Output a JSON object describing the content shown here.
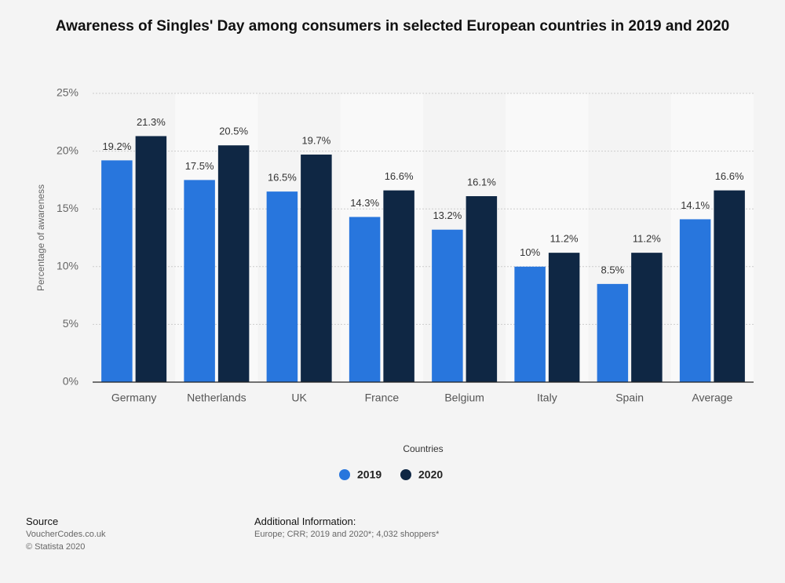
{
  "chart_data": {
    "type": "bar",
    "title": "Awareness of Singles' Day among consumers in selected European countries in 2019 and 2020",
    "x_label": "Countries",
    "y_label": "Percentage of awareness",
    "categories": [
      "Germany",
      "Netherlands",
      "UK",
      "France",
      "Belgium",
      "Italy",
      "Spain",
      "Average"
    ],
    "series": [
      {
        "name": "2019",
        "color": "#2876dd",
        "values": [
          19.2,
          17.5,
          16.5,
          14.3,
          13.2,
          10,
          8.5,
          14.1
        ],
        "value_labels": [
          "19.2%",
          "17.5%",
          "16.5%",
          "14.3%",
          "13.2%",
          "10%",
          "8.5%",
          "14.1%"
        ]
      },
      {
        "name": "2020",
        "color": "#0f2744",
        "values": [
          21.3,
          20.5,
          19.7,
          16.6,
          16.1,
          11.2,
          11.2,
          16.6
        ],
        "value_labels": [
          "21.3%",
          "20.5%",
          "19.7%",
          "16.6%",
          "16.1%",
          "11.2%",
          "11.2%",
          "16.6%"
        ]
      }
    ],
    "ylim": [
      0,
      25
    ],
    "yticks": [
      {
        "value": 0,
        "label": "0%"
      },
      {
        "value": 5,
        "label": "5%"
      },
      {
        "value": 10,
        "label": "10%"
      },
      {
        "value": 15,
        "label": "15%"
      },
      {
        "value": 20,
        "label": "20%"
      },
      {
        "value": 25,
        "label": "25%"
      }
    ],
    "grid": true
  },
  "source": {
    "heading": "Source",
    "lines": [
      "VoucherCodes.co.uk",
      "© Statista 2020"
    ]
  },
  "additional_info": {
    "heading": "Additional Information:",
    "text": "Europe; CRR; 2019 and 2020*; 4,032 shoppers*"
  }
}
